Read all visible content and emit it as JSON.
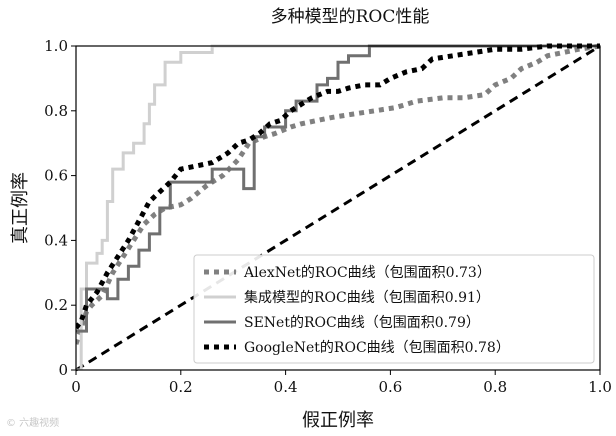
{
  "chart_data": {
    "type": "line",
    "title": "多种模型的ROC性能",
    "xlabel": "假正例率",
    "ylabel": "真正例率",
    "xlim": [
      0,
      1
    ],
    "ylim": [
      0,
      1
    ],
    "xticks": [
      "0",
      "0.2",
      "0.4",
      "0.6",
      "0.8",
      "1.0"
    ],
    "yticks": [
      "0",
      "0.2",
      "0.4",
      "0.6",
      "0.8",
      "1.0"
    ],
    "grid": false,
    "legend_position": "lower-right",
    "diagonal": {
      "x": [
        0,
        1
      ],
      "y": [
        0,
        1
      ],
      "color": "#000000",
      "style": "dashed"
    },
    "series": [
      {
        "name": "AlexNet的ROC曲线（包围面积0.73）",
        "color": "#808080",
        "style": "dotted-square",
        "x": [
          0,
          0.01,
          0.02,
          0.03,
          0.05,
          0.07,
          0.09,
          0.11,
          0.13,
          0.15,
          0.17,
          0.2,
          0.22,
          0.25,
          0.28,
          0.31,
          0.33,
          0.36,
          0.38,
          0.41,
          0.43,
          0.46,
          0.49,
          0.53,
          0.57,
          0.61,
          0.65,
          0.7,
          0.74,
          0.78,
          0.8,
          0.83,
          0.85,
          0.88,
          0.9,
          0.93,
          0.96,
          1.0
        ],
        "y": [
          0.08,
          0.13,
          0.18,
          0.2,
          0.23,
          0.3,
          0.35,
          0.4,
          0.45,
          0.48,
          0.5,
          0.51,
          0.53,
          0.57,
          0.6,
          0.65,
          0.7,
          0.72,
          0.73,
          0.75,
          0.76,
          0.77,
          0.78,
          0.79,
          0.8,
          0.81,
          0.83,
          0.84,
          0.84,
          0.85,
          0.88,
          0.9,
          0.93,
          0.95,
          0.97,
          0.98,
          0.99,
          1.0
        ]
      },
      {
        "name": "集成模型的ROC曲线（包围面积0.91）",
        "color": "#d0d0d0",
        "style": "solid",
        "x": [
          0,
          0.01,
          0.01,
          0.02,
          0.02,
          0.04,
          0.04,
          0.05,
          0.05,
          0.06,
          0.06,
          0.07,
          0.07,
          0.09,
          0.09,
          0.11,
          0.11,
          0.13,
          0.13,
          0.14,
          0.14,
          0.15,
          0.15,
          0.17,
          0.17,
          0.2,
          0.2,
          0.26,
          0.26,
          1.0
        ],
        "y": [
          0,
          0,
          0.25,
          0.25,
          0.33,
          0.33,
          0.36,
          0.36,
          0.4,
          0.4,
          0.52,
          0.52,
          0.62,
          0.62,
          0.67,
          0.67,
          0.7,
          0.7,
          0.76,
          0.76,
          0.82,
          0.82,
          0.88,
          0.88,
          0.95,
          0.95,
          0.98,
          0.98,
          1.0,
          1.0
        ]
      },
      {
        "name": "SENet的ROC曲线（包围面积0.79）",
        "color": "#707070",
        "style": "solid",
        "x": [
          0,
          0.02,
          0.02,
          0.06,
          0.06,
          0.08,
          0.08,
          0.1,
          0.1,
          0.12,
          0.12,
          0.14,
          0.14,
          0.16,
          0.16,
          0.18,
          0.18,
          0.22,
          0.22,
          0.26,
          0.26,
          0.32,
          0.32,
          0.34,
          0.34,
          0.36,
          0.36,
          0.4,
          0.4,
          0.42,
          0.42,
          0.46,
          0.46,
          0.48,
          0.48,
          0.5,
          0.5,
          0.52,
          0.52,
          0.56,
          0.56,
          1.0
        ],
        "y": [
          0.12,
          0.12,
          0.25,
          0.25,
          0.22,
          0.22,
          0.28,
          0.28,
          0.32,
          0.32,
          0.37,
          0.37,
          0.42,
          0.42,
          0.5,
          0.5,
          0.58,
          0.58,
          0.58,
          0.58,
          0.62,
          0.62,
          0.56,
          0.56,
          0.72,
          0.72,
          0.75,
          0.75,
          0.8,
          0.8,
          0.83,
          0.83,
          0.88,
          0.88,
          0.9,
          0.9,
          0.95,
          0.95,
          0.97,
          0.97,
          1.0,
          1.0
        ]
      },
      {
        "name": "GoogleNet的ROC曲线（包围面积0.78）",
        "color": "#000000",
        "style": "dotted-square",
        "x": [
          0,
          0.01,
          0.02,
          0.04,
          0.06,
          0.08,
          0.1,
          0.12,
          0.14,
          0.16,
          0.18,
          0.2,
          0.23,
          0.26,
          0.29,
          0.31,
          0.33,
          0.35,
          0.37,
          0.39,
          0.41,
          0.43,
          0.45,
          0.48,
          0.5,
          0.52,
          0.55,
          0.58,
          0.6,
          0.63,
          0.66,
          0.68,
          0.72,
          0.76,
          0.8,
          0.85,
          0.9,
          0.95,
          1.0
        ],
        "y": [
          0.13,
          0.15,
          0.2,
          0.24,
          0.3,
          0.35,
          0.4,
          0.46,
          0.52,
          0.55,
          0.58,
          0.62,
          0.63,
          0.64,
          0.67,
          0.7,
          0.71,
          0.73,
          0.76,
          0.77,
          0.8,
          0.82,
          0.84,
          0.86,
          0.86,
          0.87,
          0.88,
          0.88,
          0.9,
          0.92,
          0.93,
          0.96,
          0.97,
          0.98,
          0.99,
          0.99,
          1.0,
          1.0,
          1.0
        ]
      }
    ]
  },
  "watermark": "© 六趣视频"
}
